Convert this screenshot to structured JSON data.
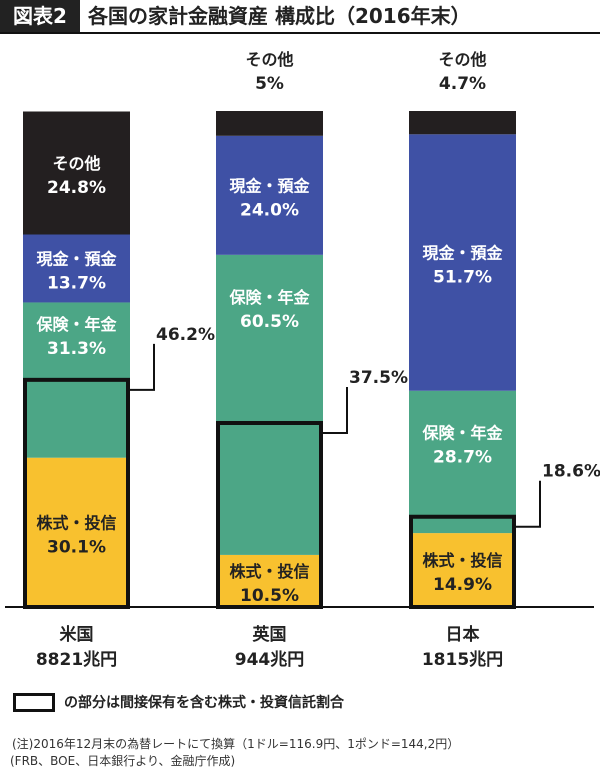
{
  "header": {
    "tag": "図表2",
    "title": "各国の家計金融資産 構成比（2016年末）"
  },
  "chart_data": {
    "type": "bar",
    "stacked": true,
    "categories": [
      "米国",
      "英国",
      "日本"
    ],
    "totals": [
      "8821兆円",
      "944兆円",
      "1815兆円"
    ],
    "ylim": [
      0,
      100
    ],
    "segments": [
      {
        "key": "stocks",
        "name": "株式・投信",
        "color": "#F8C12F",
        "values": [
          30.1,
          10.5,
          14.9
        ],
        "labels": [
          "30.1%",
          "10.5%",
          "14.9%"
        ]
      },
      {
        "key": "insurance",
        "name": "保険・年金",
        "color": "#4CA686",
        "values": [
          31.3,
          60.5,
          28.7
        ],
        "labels": [
          "31.3%",
          "60.5%",
          "28.7%"
        ]
      },
      {
        "key": "cash",
        "name": "現金・預金",
        "color": "#3F51A5",
        "values": [
          13.7,
          24.0,
          51.7
        ],
        "labels": [
          "13.7%",
          "24.0%",
          "51.7%"
        ]
      },
      {
        "key": "other",
        "name": "その他",
        "color": "#231F20",
        "values": [
          24.8,
          5.0,
          4.7
        ],
        "labels": [
          "24.8%",
          "5%",
          "4.7%"
        ]
      }
    ],
    "indirect": {
      "values": [
        46.2,
        37.5,
        18.6
      ],
      "labels": [
        "46.2%",
        "37.5%",
        "18.6%"
      ]
    }
  },
  "legend": {
    "text": "の部分は間接保有を含む株式・投資信託割合"
  },
  "footnote": {
    "note": "(注)2016年12月末の為替レートにて換算（1ドル=116.9円、1ポンド=144,2円）",
    "source": "(FRB、BOE、日本銀行より、金融庁作成)"
  }
}
